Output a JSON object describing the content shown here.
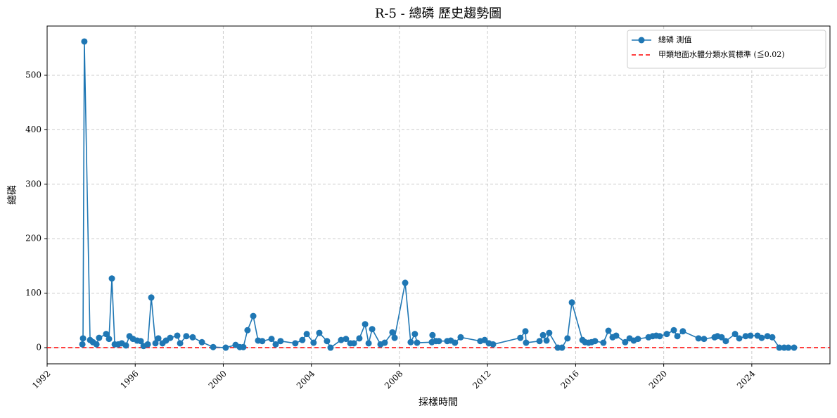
{
  "chart_data": {
    "type": "line",
    "title": "R-5 - 總磷 歷史趨勢圖",
    "x_label": "採樣時間",
    "y_label": "總磷",
    "x": [
      1993.6,
      1993.63,
      1993.69,
      1993.95,
      1994.08,
      1994.24,
      1994.36,
      1994.68,
      1994.81,
      1994.94,
      1995.07,
      1995.23,
      1995.39,
      1995.58,
      1995.74,
      1995.9,
      1996.09,
      1996.25,
      1996.38,
      1996.57,
      1996.73,
      1996.92,
      1997.05,
      1997.24,
      1997.4,
      1997.59,
      1997.91,
      1998.04,
      1998.32,
      1998.61,
      1999.03,
      1999.54,
      2000.11,
      2000.56,
      2000.75,
      2000.91,
      2001.1,
      2001.36,
      2001.58,
      2001.77,
      2002.19,
      2002.38,
      2002.6,
      2003.27,
      2003.59,
      2003.79,
      2004.1,
      2004.36,
      2004.71,
      2004.87,
      2005.35,
      2005.57,
      2005.77,
      2005.93,
      2006.18,
      2006.44,
      2006.6,
      2006.76,
      2007.14,
      2007.33,
      2007.68,
      2007.78,
      2008.26,
      2008.51,
      2008.7,
      2008.8,
      2009.47,
      2009.5,
      2009.66,
      2009.79,
      2010.17,
      2010.33,
      2010.52,
      2010.78,
      2011.67,
      2011.87,
      2012.06,
      2012.25,
      2013.49,
      2013.72,
      2013.75,
      2014.36,
      2014.52,
      2014.68,
      2014.8,
      2015.19,
      2015.38,
      2015.63,
      2015.83,
      2016.31,
      2016.43,
      2016.59,
      2016.72,
      2016.88,
      2017.26,
      2017.49,
      2017.68,
      2017.84,
      2018.25,
      2018.45,
      2018.64,
      2018.83,
      2019.31,
      2019.5,
      2019.66,
      2019.82,
      2020.14,
      2020.46,
      2020.62,
      2020.87,
      2021.58,
      2021.83,
      2022.31,
      2022.44,
      2022.63,
      2022.82,
      2023.24,
      2023.43,
      2023.72,
      2023.94,
      2024.26,
      2024.45,
      2024.71,
      2024.93,
      2025.25,
      2025.47,
      2025.66,
      2025.92
    ],
    "series": [
      {
        "name": "總磷 測值",
        "color": "#1f77b4",
        "values": [
          6,
          17,
          562,
          14,
          10,
          6,
          18,
          25,
          16,
          127,
          6,
          6,
          8,
          4,
          21,
          16,
          13,
          12,
          3,
          6,
          92,
          8,
          17,
          8,
          13,
          18,
          22,
          8,
          21,
          19,
          10,
          1,
          0,
          5,
          1,
          1,
          32,
          58,
          13,
          12,
          16,
          6,
          12,
          8,
          14,
          25,
          9,
          27,
          12,
          0,
          14,
          16,
          8,
          8,
          17,
          43,
          8,
          34,
          6,
          9,
          28,
          18,
          119,
          10,
          25,
          9,
          10,
          23,
          12,
          12,
          12,
          13,
          9,
          19,
          12,
          14,
          8,
          6,
          18,
          30,
          9,
          12,
          23,
          13,
          27,
          0,
          0,
          17,
          83,
          14,
          10,
          9,
          10,
          12,
          9,
          31,
          19,
          22,
          10,
          17,
          13,
          16,
          19,
          21,
          22,
          21,
          25,
          32,
          21,
          30,
          17,
          16,
          19,
          21,
          19,
          12,
          25,
          17,
          21,
          22,
          22,
          18,
          21,
          19,
          0,
          0,
          0,
          0
        ]
      }
    ],
    "reference_lines": [
      {
        "name": "甲類地面水體分類水質標準 (≦0.02)",
        "value": 0.02,
        "color": "#ff0000"
      }
    ],
    "xlim": [
      1992.0,
      2027.55
    ],
    "xticks": [
      1992,
      1996,
      2000,
      2004,
      2008,
      2012,
      2016,
      2020,
      2024
    ],
    "ylim": [
      -29.7,
      590.4
    ],
    "yticks": [
      0,
      100,
      200,
      300,
      400,
      500
    ],
    "grid": true,
    "legend": "upper right"
  }
}
